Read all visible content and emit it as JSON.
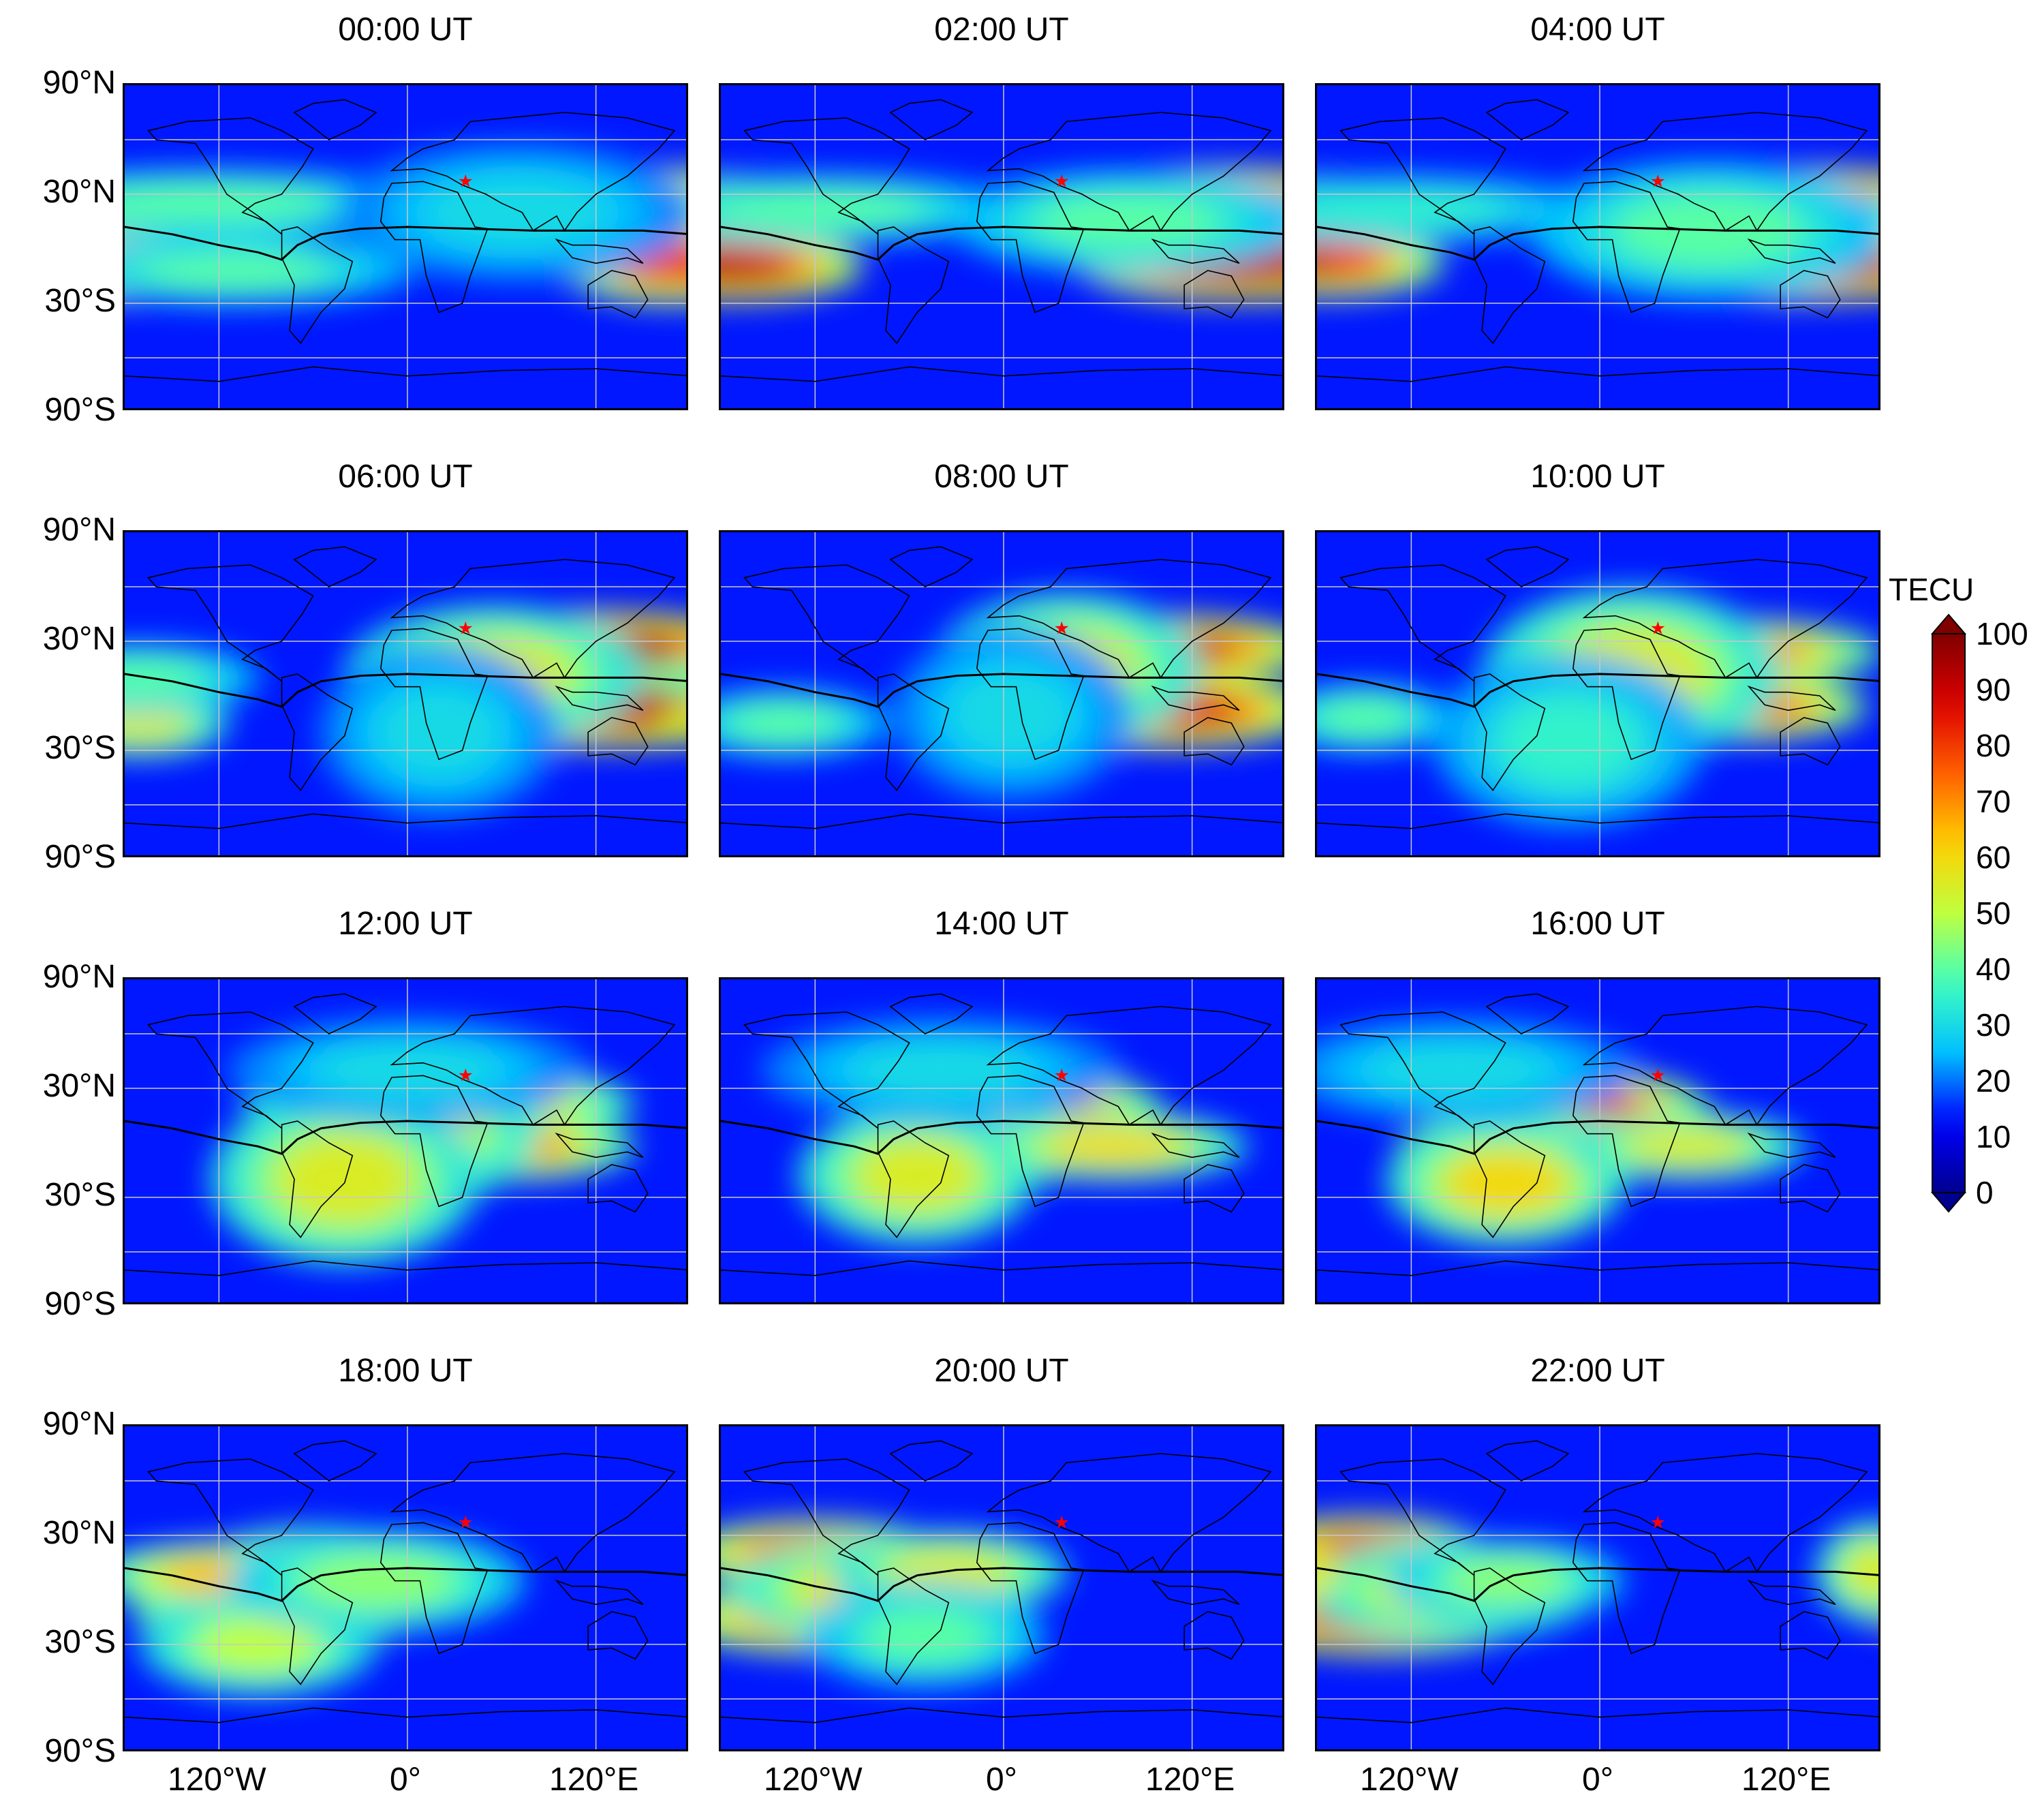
{
  "chart_data": {
    "type": "heatmap",
    "colorbar_label": "TECU",
    "colorbar_ticks": [
      "0",
      "10",
      "20",
      "30",
      "40",
      "50",
      "60",
      "70",
      "80",
      "90",
      "100"
    ],
    "color_range": [
      0,
      100
    ],
    "colormap": [
      "#00008f",
      "#0000ff",
      "#00bfff",
      "#3fffbf",
      "#bfff3f",
      "#ffd000",
      "#ff6000",
      "#dd0000",
      "#800000"
    ],
    "lat_ticks": [
      "90°N",
      "30°N",
      "30°S",
      "90°S"
    ],
    "lon_ticks": [
      "120°W",
      "0°",
      "120°E"
    ],
    "marker": {
      "symbol": "★",
      "color": "#ff0000",
      "lon": 37,
      "lat": 37
    },
    "panels": [
      {
        "title": "00:00 UT",
        "blobs": [
          [
            -180,
            22,
            55,
            10,
            90
          ],
          [
            -180,
            -10,
            55,
            10,
            95
          ],
          [
            165,
            22,
            50,
            12,
            85
          ],
          [
            170,
            -8,
            40,
            12,
            80
          ],
          [
            -130,
            25,
            80,
            10,
            40
          ],
          [
            -110,
            -12,
            60,
            10,
            40
          ],
          [
            70,
            20,
            60,
            20,
            30
          ]
        ]
      },
      {
        "title": "02:00 UT",
        "blobs": [
          [
            -175,
            22,
            45,
            10,
            85
          ],
          [
            -175,
            -10,
            45,
            10,
            90
          ],
          [
            140,
            24,
            60,
            11,
            90
          ],
          [
            150,
            -8,
            55,
            11,
            92
          ],
          [
            -120,
            22,
            70,
            10,
            40
          ],
          [
            80,
            15,
            60,
            15,
            40
          ]
        ]
      },
      {
        "title": "04:00 UT",
        "blobs": [
          [
            -175,
            22,
            35,
            10,
            75
          ],
          [
            -175,
            -8,
            40,
            10,
            80
          ],
          [
            125,
            24,
            65,
            11,
            92
          ],
          [
            130,
            -8,
            60,
            11,
            95
          ],
          [
            -130,
            22,
            70,
            10,
            35
          ],
          [
            70,
            10,
            60,
            20,
            40
          ]
        ]
      },
      {
        "title": "06:00 UT",
        "blobs": [
          [
            115,
            26,
            60,
            11,
            95
          ],
          [
            125,
            -6,
            60,
            12,
            92
          ],
          [
            55,
            12,
            50,
            20,
            55
          ],
          [
            -170,
            -15,
            30,
            10,
            55
          ],
          [
            -170,
            10,
            40,
            10,
            40
          ],
          [
            20,
            -20,
            40,
            25,
            30
          ]
        ]
      },
      {
        "title": "08:00 UT",
        "blobs": [
          [
            95,
            26,
            55,
            10,
            90
          ],
          [
            105,
            -8,
            50,
            11,
            88
          ],
          [
            40,
            15,
            45,
            22,
            55
          ],
          [
            -140,
            -15,
            35,
            10,
            40
          ],
          [
            5,
            -10,
            40,
            25,
            30
          ]
        ]
      },
      {
        "title": "10:00 UT",
        "blobs": [
          [
            75,
            24,
            55,
            10,
            75
          ],
          [
            85,
            -6,
            45,
            10,
            80
          ],
          [
            20,
            12,
            50,
            25,
            55
          ],
          [
            -150,
            -12,
            30,
            10,
            40
          ],
          [
            -20,
            -25,
            45,
            25,
            35
          ]
        ]
      },
      {
        "title": "12:00 UT",
        "blobs": [
          [
            50,
            22,
            50,
            10,
            65
          ],
          [
            60,
            -2,
            45,
            10,
            70
          ],
          [
            -10,
            10,
            50,
            25,
            60
          ],
          [
            -40,
            -20,
            45,
            25,
            55
          ],
          [
            0,
            40,
            60,
            15,
            30
          ]
        ]
      },
      {
        "title": "14:00 UT",
        "blobs": [
          [
            15,
            20,
            45,
            10,
            75
          ],
          [
            -15,
            -2,
            45,
            12,
            70
          ],
          [
            -55,
            -18,
            40,
            20,
            55
          ],
          [
            70,
            -2,
            45,
            10,
            60
          ],
          [
            -40,
            40,
            60,
            15,
            30
          ]
        ]
      },
      {
        "title": "16:00 UT",
        "blobs": [
          [
            -15,
            18,
            45,
            12,
            80
          ],
          [
            -45,
            -6,
            45,
            12,
            75
          ],
          [
            -60,
            -22,
            40,
            18,
            60
          ],
          [
            55,
            -2,
            40,
            10,
            55
          ],
          [
            -90,
            40,
            60,
            15,
            30
          ]
        ]
      },
      {
        "title": "18:00 UT",
        "blobs": [
          [
            -55,
            16,
            40,
            10,
            70
          ],
          [
            -80,
            -10,
            50,
            12,
            75
          ],
          [
            -115,
            8,
            45,
            10,
            65
          ],
          [
            -95,
            -30,
            40,
            15,
            50
          ],
          [
            -20,
            5,
            50,
            15,
            45
          ]
        ]
      },
      {
        "title": "20:00 UT",
        "blobs": [
          [
            -120,
            20,
            45,
            10,
            80
          ],
          [
            -115,
            -15,
            50,
            11,
            80
          ],
          [
            -80,
            0,
            50,
            15,
            60
          ],
          [
            -35,
            10,
            40,
            12,
            55
          ],
          [
            -50,
            -25,
            40,
            15,
            40
          ]
        ]
      },
      {
        "title": "22:00 UT",
        "blobs": [
          [
            -150,
            22,
            40,
            10,
            85
          ],
          [
            -140,
            -15,
            50,
            11,
            90
          ],
          [
            -95,
            0,
            50,
            15,
            55
          ],
          [
            -60,
            5,
            40,
            12,
            45
          ],
          [
            175,
            10,
            20,
            15,
            55
          ]
        ]
      }
    ]
  }
}
